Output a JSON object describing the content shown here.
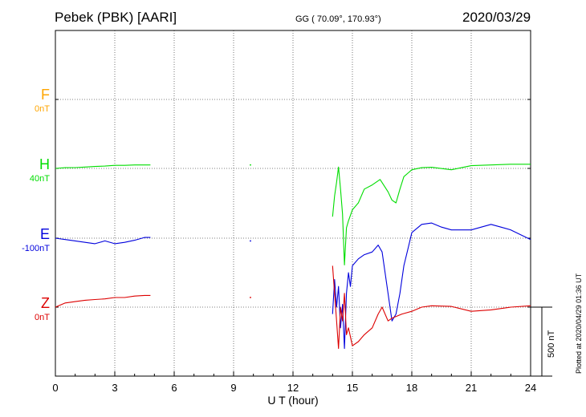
{
  "header": {
    "station": "Pebek (PBK)  [AARI]",
    "coords": "GG ( 70.09°, 170.93°)",
    "date": "2020/03/29"
  },
  "components": [
    {
      "key": "F",
      "label": "F",
      "baseline": "0nT",
      "color": "#ffa500"
    },
    {
      "key": "H",
      "label": "H",
      "baseline": "40nT",
      "color": "#00dd00"
    },
    {
      "key": "E",
      "label": "E",
      "baseline": "-100nT",
      "color": "#0000dd"
    },
    {
      "key": "Z",
      "label": "Z",
      "baseline": "0nT",
      "color": "#dd0000"
    }
  ],
  "footnote": "Plotted at 2020/04/29 01:36 UT",
  "scale": {
    "label": "500 nT",
    "value_nT": 500
  },
  "chart_data": {
    "type": "line",
    "title": "Pebek (PBK)  [AARI]",
    "xlabel": "U T (hour)",
    "ylabel": "",
    "xlim": [
      0,
      24
    ],
    "x_ticks": [
      0,
      3,
      6,
      9,
      12,
      15,
      18,
      21,
      24
    ],
    "grid": true,
    "units": "nT relative to component baseline",
    "series": [
      {
        "name": "F",
        "baseline": "0nT",
        "color": "#ffa500",
        "x": [],
        "y": []
      },
      {
        "name": "H",
        "baseline": "40nT",
        "color": "#00dd00",
        "segments": [
          {
            "x": [
              0,
              0.5,
              1,
              1.5,
              2,
              2.5,
              3,
              3.5,
              4,
              4.5,
              4.8
            ],
            "y": [
              0,
              5,
              6,
              10,
              14,
              17,
              22,
              22,
              25,
              25,
              25
            ]
          },
          {
            "x": [
              14.0,
              14.1,
              14.2,
              14.3,
              14.4,
              14.5,
              14.6,
              14.7,
              14.8,
              15.0,
              15.3,
              15.6,
              16.0,
              16.4,
              16.8,
              17.0,
              17.2,
              17.4,
              17.6,
              18.0,
              18.5,
              19.0,
              20.0,
              21.0,
              22.0,
              23.0,
              24.0
            ],
            "y": [
              -350,
              -200,
              -100,
              10,
              -150,
              -330,
              -700,
              -430,
              -380,
              -300,
              -250,
              -150,
              -120,
              -80,
              -170,
              -230,
              -250,
              -150,
              -60,
              -10,
              5,
              8,
              -10,
              20,
              25,
              30,
              30
            ]
          }
        ]
      },
      {
        "name": "E",
        "baseline": "-100nT",
        "color": "#0000dd",
        "segments": [
          {
            "x": [
              0,
              0.5,
              1,
              1.5,
              2,
              2.5,
              3,
              3.5,
              4,
              4.5,
              4.8
            ],
            "y": [
              0,
              -10,
              -20,
              -30,
              -40,
              -20,
              -40,
              -30,
              -15,
              5,
              5
            ]
          },
          {
            "x": [
              14.0,
              14.1,
              14.2,
              14.3,
              14.4,
              14.5,
              14.6,
              14.7,
              14.8,
              14.9,
              15.0,
              15.3,
              15.6,
              16.0,
              16.3,
              16.5,
              16.8,
              17.0,
              17.2,
              17.4,
              17.6,
              17.8,
              18.0,
              18.5,
              19.0,
              19.5,
              20.0,
              21.0,
              22.0,
              22.5,
              23.0,
              24.0
            ],
            "y": [
              -550,
              -300,
              -500,
              -350,
              -650,
              -480,
              -800,
              -400,
              -250,
              -350,
              -200,
              -150,
              -120,
              -100,
              -50,
              -100,
              -400,
              -600,
              -550,
              -400,
              -200,
              -80,
              40,
              100,
              110,
              80,
              60,
              60,
              100,
              80,
              60,
              -10
            ]
          }
        ]
      },
      {
        "name": "Z",
        "baseline": "0nT",
        "color": "#dd0000",
        "segments": [
          {
            "x": [
              0,
              0.5,
              1,
              1.5,
              2,
              2.5,
              3,
              3.5,
              4,
              4.5,
              4.8
            ],
            "y": [
              0,
              30,
              40,
              50,
              55,
              60,
              70,
              70,
              80,
              85,
              85
            ]
          },
          {
            "x": [
              14.0,
              14.1,
              14.2,
              14.3,
              14.4,
              14.5,
              14.6,
              14.7,
              14.8,
              15.0,
              15.3,
              15.6,
              16.0,
              16.3,
              16.5,
              16.8,
              17.0,
              17.5,
              18.0,
              18.5,
              19.0,
              20.0,
              21.0,
              22.0,
              23.0,
              24.0
            ],
            "y": [
              300,
              100,
              -100,
              -300,
              0,
              -100,
              100,
              -200,
              -150,
              -280,
              -250,
              -200,
              -150,
              -50,
              0,
              -100,
              -80,
              -50,
              -30,
              0,
              10,
              5,
              -30,
              -20,
              0,
              10
            ]
          }
        ]
      }
    ]
  }
}
